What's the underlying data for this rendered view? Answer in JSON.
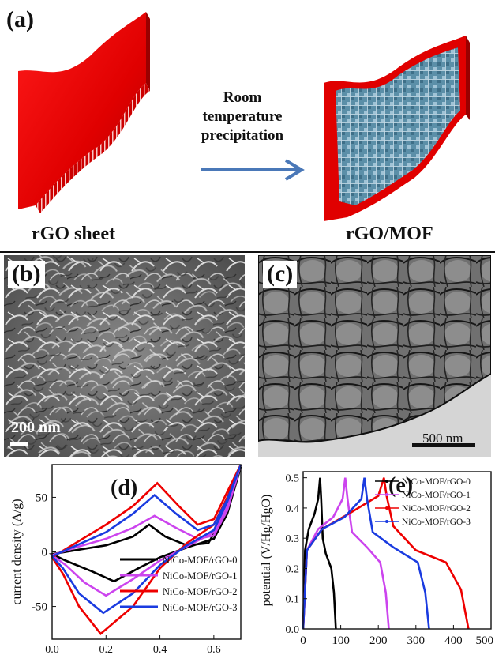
{
  "panel_a": {
    "label": "(a)",
    "left_caption": "rGO sheet",
    "right_caption": "rGO/MOF",
    "arrow_text": [
      "Room",
      "temperature",
      "precipitation"
    ]
  },
  "panel_b": {
    "label": "(b)",
    "scale_bar": "200 nm"
  },
  "panel_c": {
    "label": "(c)",
    "scale_bar": "500 nm"
  },
  "colors": {
    "rgo_red": "#e00000",
    "mof_blue": "#5b8fa8",
    "arrow_blue": "#4a78b8",
    "series0": "#000000",
    "series1": "#cc44ee",
    "series2": "#ee0000",
    "series3": "#1a3be0"
  },
  "chart_data": [
    {
      "type": "line",
      "panel_label": "(d)",
      "ylabel": "current density (A/g)",
      "xlabel": "",
      "xlim": [
        0.0,
        0.7
      ],
      "ylim": [
        -80,
        80
      ],
      "x_ticks": [
        "0.0",
        "0.2",
        "0.4",
        "0.6"
      ],
      "y_ticks": [
        "50",
        "0",
        "-50"
      ],
      "legend_position": "bottom-right",
      "series": [
        {
          "name": "NiCo-MOF/rGO-0",
          "color": "#000000",
          "upper": [
            [
              0.0,
              -2
            ],
            [
              0.1,
              2
            ],
            [
              0.2,
              6
            ],
            [
              0.3,
              14
            ],
            [
              0.36,
              25
            ],
            [
              0.42,
              14
            ],
            [
              0.5,
              6
            ],
            [
              0.58,
              8
            ],
            [
              0.63,
              30
            ],
            [
              0.7,
              78
            ]
          ],
          "lower": [
            [
              0.7,
              78
            ],
            [
              0.65,
              35
            ],
            [
              0.6,
              12
            ],
            [
              0.5,
              4
            ],
            [
              0.4,
              -5
            ],
            [
              0.32,
              -15
            ],
            [
              0.23,
              -27
            ],
            [
              0.15,
              -18
            ],
            [
              0.05,
              -8
            ],
            [
              0.0,
              -2
            ]
          ]
        },
        {
          "name": "NiCo-MOF/rGO-1",
          "color": "#cc44ee",
          "upper": [
            [
              0.0,
              -3
            ],
            [
              0.1,
              5
            ],
            [
              0.2,
              12
            ],
            [
              0.3,
              22
            ],
            [
              0.38,
              33
            ],
            [
              0.46,
              22
            ],
            [
              0.54,
              12
            ],
            [
              0.6,
              15
            ],
            [
              0.65,
              38
            ],
            [
              0.7,
              80
            ]
          ],
          "lower": [
            [
              0.7,
              80
            ],
            [
              0.65,
              42
            ],
            [
              0.6,
              18
            ],
            [
              0.5,
              5
            ],
            [
              0.4,
              -8
            ],
            [
              0.3,
              -25
            ],
            [
              0.2,
              -40
            ],
            [
              0.12,
              -28
            ],
            [
              0.05,
              -12
            ],
            [
              0.0,
              -3
            ]
          ]
        },
        {
          "name": "NiCo-MOF/rGO-2",
          "color": "#ee0000",
          "upper": [
            [
              0.0,
              -5
            ],
            [
              0.1,
              10
            ],
            [
              0.2,
              25
            ],
            [
              0.3,
              42
            ],
            [
              0.39,
              63
            ],
            [
              0.47,
              42
            ],
            [
              0.54,
              25
            ],
            [
              0.6,
              30
            ],
            [
              0.65,
              55
            ],
            [
              0.7,
              80
            ]
          ],
          "lower": [
            [
              0.7,
              80
            ],
            [
              0.65,
              50
            ],
            [
              0.6,
              25
            ],
            [
              0.5,
              8
            ],
            [
              0.4,
              -15
            ],
            [
              0.3,
              -50
            ],
            [
              0.18,
              -75
            ],
            [
              0.1,
              -50
            ],
            [
              0.04,
              -20
            ],
            [
              0.0,
              -5
            ]
          ]
        },
        {
          "name": "NiCo-MOF/rGO-3",
          "color": "#1a3be0",
          "upper": [
            [
              0.0,
              -4
            ],
            [
              0.1,
              7
            ],
            [
              0.2,
              18
            ],
            [
              0.3,
              35
            ],
            [
              0.38,
              52
            ],
            [
              0.46,
              35
            ],
            [
              0.54,
              20
            ],
            [
              0.6,
              25
            ],
            [
              0.65,
              48
            ],
            [
              0.7,
              80
            ]
          ],
          "lower": [
            [
              0.7,
              80
            ],
            [
              0.65,
              46
            ],
            [
              0.6,
              20
            ],
            [
              0.5,
              6
            ],
            [
              0.4,
              -12
            ],
            [
              0.3,
              -38
            ],
            [
              0.19,
              -56
            ],
            [
              0.1,
              -38
            ],
            [
              0.04,
              -15
            ],
            [
              0.0,
              -4
            ]
          ]
        }
      ]
    },
    {
      "type": "line",
      "panel_label": "(e)",
      "ylabel": "potential (V/Hg/HgO)",
      "xlabel": "",
      "xlim": [
        0,
        500
      ],
      "ylim": [
        0.0,
        0.52
      ],
      "x_ticks": [
        "0",
        "100",
        "200",
        "300",
        "400",
        "500"
      ],
      "y_ticks": [
        "0.0",
        "0.1",
        "0.2",
        "0.3",
        "0.4",
        "0.5"
      ],
      "legend_position": "top-right",
      "series": [
        {
          "name": "NiCo-MOF/rGO-0",
          "color": "#000000",
          "points": [
            [
              0,
              0.0
            ],
            [
              5,
              0.26
            ],
            [
              15,
              0.33
            ],
            [
              30,
              0.38
            ],
            [
              40,
              0.43
            ],
            [
              45,
              0.5
            ],
            [
              48,
              0.43
            ],
            [
              52,
              0.3
            ],
            [
              60,
              0.25
            ],
            [
              75,
              0.2
            ],
            [
              82,
              0.12
            ],
            [
              87,
              0.0
            ]
          ]
        },
        {
          "name": "NiCo-MOF/rGO-1",
          "color": "#cc44ee",
          "points": [
            [
              0,
              0.0
            ],
            [
              10,
              0.26
            ],
            [
              40,
              0.33
            ],
            [
              80,
              0.37
            ],
            [
              105,
              0.43
            ],
            [
              112,
              0.5
            ],
            [
              118,
              0.43
            ],
            [
              130,
              0.32
            ],
            [
              170,
              0.27
            ],
            [
              205,
              0.22
            ],
            [
              220,
              0.12
            ],
            [
              228,
              0.0
            ]
          ]
        },
        {
          "name": "NiCo-MOF/rGO-2",
          "color": "#ee0000",
          "points": [
            [
              0,
              0.0
            ],
            [
              10,
              0.26
            ],
            [
              50,
              0.33
            ],
            [
              120,
              0.38
            ],
            [
              200,
              0.44
            ],
            [
              215,
              0.5
            ],
            [
              222,
              0.44
            ],
            [
              240,
              0.34
            ],
            [
              300,
              0.26
            ],
            [
              380,
              0.22
            ],
            [
              420,
              0.13
            ],
            [
              440,
              0.0
            ]
          ]
        },
        {
          "name": "NiCo-MOF/rGO-3",
          "color": "#1a3be0",
          "points": [
            [
              0,
              0.0
            ],
            [
              10,
              0.26
            ],
            [
              50,
              0.33
            ],
            [
              110,
              0.37
            ],
            [
              155,
              0.43
            ],
            [
              163,
              0.5
            ],
            [
              170,
              0.43
            ],
            [
              185,
              0.32
            ],
            [
              240,
              0.27
            ],
            [
              305,
              0.22
            ],
            [
              325,
              0.12
            ],
            [
              335,
              0.0
            ]
          ]
        }
      ]
    }
  ]
}
